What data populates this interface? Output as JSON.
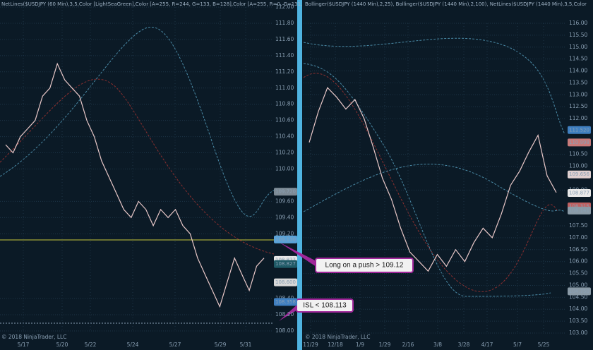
{
  "left_panel": {
    "header": "NetLines($USDJPY (60 Min),3,5,Color [LightSeaGreen],Color [A=255, R=244, G=133, B=128],Color [A=255, R=0, G=131,",
    "yticks": [
      {
        "value": 112,
        "label": "112.00"
      },
      {
        "value": 111.8,
        "label": "111.80"
      },
      {
        "value": 111.6,
        "label": "111.60"
      },
      {
        "value": 111.4,
        "label": "111.40"
      },
      {
        "value": 111.2,
        "label": "111.20"
      },
      {
        "value": 111,
        "label": "111.00"
      },
      {
        "value": 110.8,
        "label": "110.80"
      },
      {
        "value": 110.6,
        "label": "110.60"
      },
      {
        "value": 110.4,
        "label": "110.40"
      },
      {
        "value": 110.2,
        "label": "110.20"
      },
      {
        "value": 110,
        "label": "110.00"
      },
      {
        "value": 109.6,
        "label": "109.60"
      },
      {
        "value": 109.4,
        "label": "109.40"
      },
      {
        "value": 109.2,
        "label": "109.20"
      },
      {
        "value": 108.4,
        "label": "108.40"
      },
      {
        "value": 108.2,
        "label": "108.20"
      },
      {
        "value": 108,
        "label": "108.00"
      }
    ],
    "price_tags": [
      {
        "value": 109.72,
        "label": "109.720",
        "color": "#7d8a95"
      },
      {
        "value": 109.13,
        "label": "109.130",
        "color": "#5ba3d8"
      },
      {
        "value": 108.877,
        "label": "108.877",
        "color": "#e8e8e8"
      },
      {
        "value": 108.827,
        "label": "108.827",
        "color": "#1f5a66"
      },
      {
        "value": 108.6,
        "label": "108.600",
        "color": "#d8d8d8"
      },
      {
        "value": 108.358,
        "label": "108.358",
        "color": "#3f7fc0"
      }
    ],
    "categories": [
      "5/17",
      "5/20",
      "5/22",
      "5/24",
      "5/27",
      "5/29",
      "5/31"
    ],
    "closes": [
      110.3,
      110.2,
      110.4,
      110.5,
      110.6,
      110.9,
      111.0,
      111.3,
      111.1,
      111.0,
      110.9,
      110.6,
      110.4,
      110.1,
      109.9,
      109.7,
      109.5,
      109.4,
      109.6,
      109.5,
      109.3,
      109.5,
      109.4,
      109.5,
      109.3,
      109.2,
      108.9,
      108.7,
      108.5,
      108.3,
      108.6,
      108.9,
      108.7,
      108.5,
      108.8,
      108.9
    ],
    "copyright": "© 2018 NinjaTrader, LLC"
  },
  "right_panel": {
    "header": "Bollinger($USDJPY (1440 Min),2,25), Bollinger($USDJPY (1440 Min),2,100), NetLines($USDJPY (1440 Min),3,5,Color",
    "yticks": [
      {
        "value": 116,
        "label": "116.00"
      },
      {
        "value": 115.5,
        "label": "115.50"
      },
      {
        "value": 115,
        "label": "115.00"
      },
      {
        "value": 114.5,
        "label": "114.50"
      },
      {
        "value": 114,
        "label": "114.00"
      },
      {
        "value": 113.5,
        "label": "113.50"
      },
      {
        "value": 113,
        "label": "113.00"
      },
      {
        "value": 112.5,
        "label": "112.50"
      },
      {
        "value": 112,
        "label": "112.00"
      },
      {
        "value": 110.5,
        "label": "110.50"
      },
      {
        "value": 110,
        "label": "110.00"
      },
      {
        "value": 109,
        "label": "109.00"
      },
      {
        "value": 107.5,
        "label": "107.50"
      },
      {
        "value": 107,
        "label": "107.00"
      },
      {
        "value": 106.5,
        "label": "106.50"
      },
      {
        "value": 106,
        "label": "106.00"
      },
      {
        "value": 105.5,
        "label": "105.50"
      },
      {
        "value": 105,
        "label": "105.00"
      },
      {
        "value": 104.5,
        "label": "104.50"
      },
      {
        "value": 104,
        "label": "104.00"
      },
      {
        "value": 103.5,
        "label": "103.50"
      },
      {
        "value": 103,
        "label": "103.00"
      }
    ],
    "price_tags": [
      {
        "value": 111.52,
        "label": "111.520",
        "color": "#3f7fc0"
      },
      {
        "value": 110.998,
        "label": "110.998",
        "color": "#c87a7a"
      },
      {
        "value": 109.656,
        "label": "109.656",
        "color": "#e0d0d0"
      },
      {
        "value": 108.877,
        "label": "108.877",
        "color": "#e8e8e8"
      },
      {
        "value": 108.315,
        "label": "108.315",
        "color": "#c06060"
      },
      {
        "value": 108.141,
        "label": "108.141",
        "color": "#8a9aa6"
      },
      {
        "value": 104.75,
        "label": "104.750",
        "color": "#8a9aa6"
      }
    ],
    "categories": [
      "11/29",
      "12/18",
      "1/9",
      "1/29",
      "2/16",
      "3/8",
      "3/28",
      "4/17",
      "5/7",
      "5/25"
    ],
    "closes": [
      111.0,
      112.3,
      113.3,
      112.9,
      112.4,
      112.8,
      112.0,
      110.8,
      109.5,
      108.6,
      107.4,
      106.4,
      106.0,
      105.6,
      106.3,
      105.8,
      106.5,
      106.0,
      106.8,
      107.4,
      107.0,
      108.0,
      109.2,
      109.8,
      110.6,
      111.3,
      109.6,
      108.9
    ],
    "copyright": "© 2018 NinjaTrader, LLC"
  },
  "annotations": [
    "Long on a push > 109.12",
    "ISL < 108.113"
  ]
}
